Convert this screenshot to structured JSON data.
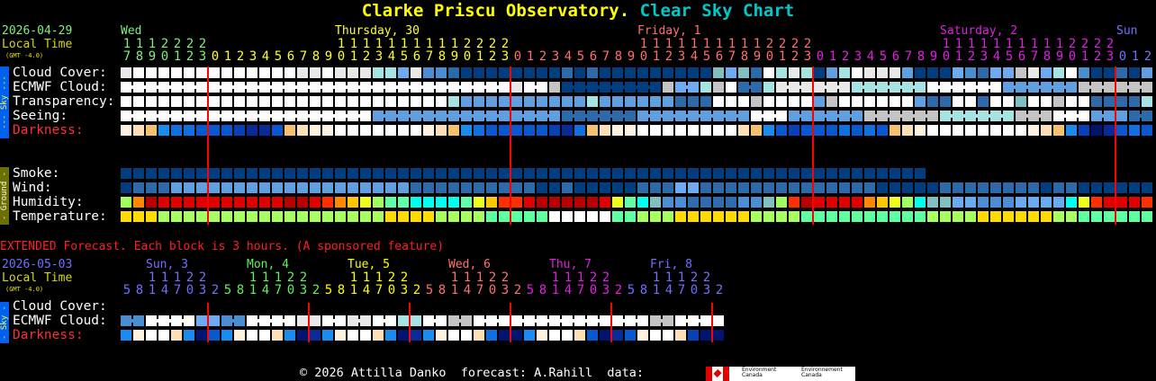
{
  "title": {
    "part1": "Clarke Priscu Observatory.",
    "part2": "Clear Sky Chart",
    "color1": "#ffff00",
    "color2": "#00c8c8"
  },
  "main": {
    "date": "2026-04-29",
    "local_time_label": "Local Time",
    "gmt_offset": "(GMT -4.0)",
    "midnight_line_color": "#ff0000",
    "days": [
      {
        "label": "Wed",
        "color": "#7fef7f",
        "tens": "1112222",
        "ones": "7890123"
      },
      {
        "label": "Thursday, 30",
        "color": "#ffff30",
        "tens": "          11111111112222",
        "ones": "012345678901234567890123"
      },
      {
        "label": "Friday, 1",
        "color": "#ff7070",
        "tens": "          11111111112222",
        "ones": "012345678901234567890123"
      },
      {
        "label": "Saturday, 2",
        "color": "#e020e0",
        "tens": "          11111111112222",
        "ones": "012345678901234567890123"
      },
      {
        "label": "Sun",
        "color": "#7070ff",
        "tens": "   ",
        "ones": "012"
      }
    ],
    "sky_section_label": "--- Sky ---",
    "sky_rows": [
      {
        "label": "Cloud Cover:",
        "label_color": "#ffffff",
        "palette": "sky",
        "style": "block",
        "cells": "LWWWWWWWWWWWWWLLWLLLCCPLMMBDDDDDDDDBDBDDDDDDDDDTPTBWCLCDSCWLLLSDDDPMBPPGLPCWMDDBDS"
      },
      {
        "label": "ECMWF Cloud:",
        "label_color": "#ffffff",
        "palette": "sky",
        "style": "joined",
        "cells": "WWWWWWWWWWWWWWWWWWWWWWWWWWWWWWWLWWGDDDDDDDDGPPCGWBBCLLLLLLCCCCCCWWWWWWSSSSSSGGGGGG"
      },
      {
        "label": "Transparency:",
        "label_color": "#ffffff",
        "palette": "sky",
        "style": "block",
        "cells": "WWWWWWWWWWWWWWWWWWWWWWWWWWCSSSSSSSSSSCSSSSSSBBBWWWGWWWWSGWWWWWWSBBWWBWWTWWGWWBBBBC"
      },
      {
        "label": "Seeing:",
        "label_color": "#ffffff",
        "palette": "sky",
        "style": "joined",
        "cells": "WWWWWWWWWWWWWWWWWWWWSSSSSSSSSSSSSSSBBBBBBSSSSSSSSSWWWSSSSSSGGGGGGCCCCCCGGGWWWSSSBB"
      },
      {
        "label": "Darkness:",
        "label_color": "#ff3030",
        "palette": "darkness",
        "style": "block",
        "cells": "YOR1223334553ROYYWWWWWWWYOR1233333452ROYYWWWWWWWWOR1343332323ROYWWWWWWWWYOR1465323"
      }
    ],
    "ground_section_label": "- Ground -",
    "ground_rows": [
      {
        "label": "Smoke:",
        "label_color": "#ffffff",
        "palette": "sky",
        "style": "block",
        "cells": "DDDDDDDDDDDDDDDDDDDDDDDDDDDDDDDDDDDDDDDDDDDDDDDDDDDDDDDDDDDDDDDD.................."
      },
      {
        "label": "Wind:",
        "label_color": "#ffffff",
        "palette": "sky",
        "style": "block",
        "cells": "DBBBSSSSSSSSSSSSSSSSSSSBBBBBBBBBBDDBDDDDDBBBPPBBBBBBBBBBBBBBDDDDDBBBBBBBBDBBDDDDDD"
      },
      {
        "label": "Humidity:",
        "label_color": "#ffffff",
        "palette": "humidity",
        "style": "block",
        "cells": "aokrrrrrrrrrrkkrqoyeannccccneyqqrkkkkkrenctmmbbbbmmtaqkrrrroyeacttssmmmssssceqrrrq"
      },
      {
        "label": "Temperature:",
        "label_color": "#ffffff",
        "palette": "temperature",
        "style": "block",
        "cells": "YYYAAAAAAAAAAAAAAAAAAYYYYAAAANNNNNWWWWWNNAAAYYYYYYAAAANNNNNNNNNNAAAAYYYYYYAANNNNNN"
      }
    ]
  },
  "extended": {
    "heading": "EXTENDED Forecast. Each block is 3 hours. (A sponsored feature)",
    "heading_color": "#ff2020",
    "date": "2026-05-03",
    "local_time_label": "Local Time",
    "gmt_offset": "(GMT -4.0)",
    "days": [
      {
        "label": "Sun, 3",
        "color": "#7070ff",
        "tens": "  11122 ",
        "ones": "58147032"
      },
      {
        "label": "Mon, 4",
        "color": "#60f060",
        "tens": "  11122 ",
        "ones": "58147032"
      },
      {
        "label": "Tue, 5",
        "color": "#ffff00",
        "tens": "  11122 ",
        "ones": "58147032"
      },
      {
        "label": "Wed, 6",
        "color": "#ff7070",
        "tens": "  11122 ",
        "ones": "58147032"
      },
      {
        "label": "Thu, 7",
        "color": "#e020e0",
        "tens": "  11122 ",
        "ones": "58147032"
      },
      {
        "label": "Fri, 8",
        "color": "#7070ff",
        "tens": "  11122 ",
        "ones": "58147032"
      }
    ],
    "sky_section_label": "- Sky -",
    "rows": [
      {
        "label": "Cloud Cover:",
        "label_color": "#ffffff",
        "palette": "sky",
        "style": "block",
        "cells": ""
      },
      {
        "label": "ECMWF Cloud:",
        "label_color": "#ffffff",
        "palette": "sky",
        "style": "joined",
        "cells": "MMWWWWPPMMWWWWLLWWLLWWCCWWGGWWWWWWWWWWWWWWGGWWWW"
      },
      {
        "label": "Darkness:",
        "label_color": "#ff3030",
        "palette": "darkness",
        "style": "block",
        "cells": "1YWWO1631YWWO1651YWWO1651YWWO2661YWWO3653YWWO466"
      }
    ]
  },
  "palettes": {
    "sky": {
      "W": "#fdfdfd",
      "L": "#e8e8e8",
      "G": "#c4c4c4",
      "C": "#a6e4e4",
      "T": "#7fbfbf",
      "P": "#6eaaf2",
      "S": "#60a0e0",
      "M": "#4a8ed2",
      "B": "#2c6aaa",
      "D": "#003f7f"
    },
    "darkness": {
      "W": "#ffffff",
      "Y": "#fff3e0",
      "O": "#fde0b8",
      "R": "#f5c070",
      "1": "#1a8cf0",
      "2": "#1070e0",
      "3": "#0858d0",
      "4": "#0840b8",
      "5": "#0a2a9a",
      "6": "#001470"
    },
    "humidity": {
      "a": "#a0ff60",
      "o": "#ff8800",
      "k": "#b80000",
      "r": "#e00000",
      "q": "#ff3000",
      "y": "#ffc800",
      "e": "#ecff20",
      "n": "#60ffa8",
      "c": "#00ffee",
      "t": "#80c0c0",
      "m": "#4a8fd6",
      "b": "#2e6eb0",
      "s": "#6aaaf0"
    },
    "temperature": {
      "Y": "#ffdc00",
      "A": "#a8ff60",
      "N": "#60ffa0",
      "W": "#ffffff"
    }
  },
  "footer": {
    "text": "© 2026 Attilla Danko  forecast: A.Rahill  data:",
    "logo_text_en": "Environment\nCanada",
    "logo_text_fr": "Environnement\nCanada"
  }
}
